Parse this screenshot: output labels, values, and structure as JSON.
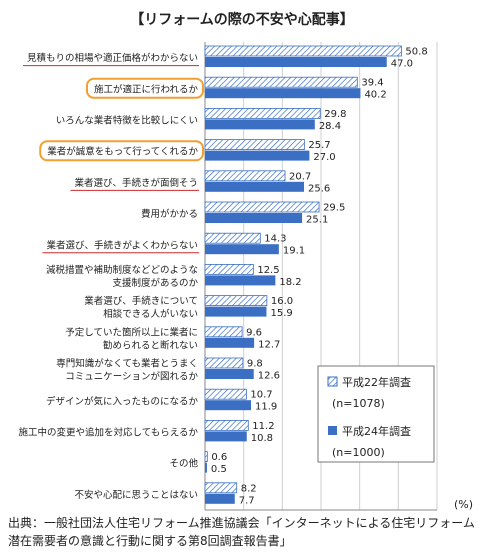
{
  "chart_data": {
    "type": "bar",
    "orientation": "horizontal",
    "title": "【リフォームの際の不安や心配事】",
    "categories": [
      "見積もりの相場や適正価格がわからない",
      "施工が適正に行われるか",
      "いろんな業者特徴を比較しにくい",
      "業者が誠意をもって行ってくれるか",
      "業者選び、手続きが面倒そう",
      "費用がかかる",
      "業者選び、手続きがよくわからない",
      "減税措置や補助制度などどのような\n支援制度があるのか",
      "業者選び、手続きについて\n相談できる人がいない",
      "予定していた箇所以上に業者に\n勧められると断れない",
      "専門知識がなくても業者とうまく\nコミュニケーションが図れるか",
      "デザインが気に入ったものになるか",
      "施工中の変更や追加を対応してもらえるか",
      "その他",
      "不安や心配に思うことはない"
    ],
    "series": [
      {
        "name": "平成22年調査\n(n=1078)",
        "values": [
          50.8,
          39.4,
          29.8,
          25.7,
          20.7,
          29.5,
          14.3,
          12.5,
          16.0,
          9.6,
          9.8,
          10.7,
          11.2,
          0.6,
          8.2
        ]
      },
      {
        "name": "平成24年調査\n(n=1000)",
        "values": [
          47.0,
          40.2,
          28.4,
          27.0,
          25.6,
          25.1,
          19.1,
          18.2,
          15.9,
          12.7,
          12.6,
          11.9,
          10.8,
          0.5,
          7.7
        ]
      }
    ],
    "value_labels": [
      [
        "50.8",
        "39.4",
        "29.8",
        "25.7",
        "20.7",
        "29.5",
        "14.3",
        "12.5",
        "16.0",
        "9.6",
        "9.8",
        "10.7",
        "11.2",
        "0.6",
        "8.2"
      ],
      [
        "47.0",
        "40.2",
        "28.4",
        "27.0",
        "25.6",
        "25.1",
        "19.1",
        "18.2",
        "15.9",
        "12.7",
        "12.6",
        "11.9",
        "10.8",
        "0.5",
        "7.7"
      ]
    ],
    "xlim": [
      0,
      60
    ],
    "xticks": [
      "0",
      "10",
      "20",
      "30",
      "40",
      "50",
      "60"
    ],
    "xunit": "(%)",
    "highlighted_boxed": [
      1,
      3
    ],
    "highlighted_underlined": [
      0,
      4,
      6
    ],
    "legend_position": "bottom-right",
    "colors": {
      "series1_hatch": "#3a6fc4",
      "series2_fill": "#3a6fc4",
      "highlight_box": "#f0a030",
      "underline": "#d02828",
      "gridline": "#cfcfcf"
    }
  },
  "source": "出典：一般社団法人住宅リフォーム推進協議会「インターネットによる住宅リフォーム潜在需要者の意識と行動に関する第8回調査報告書」"
}
